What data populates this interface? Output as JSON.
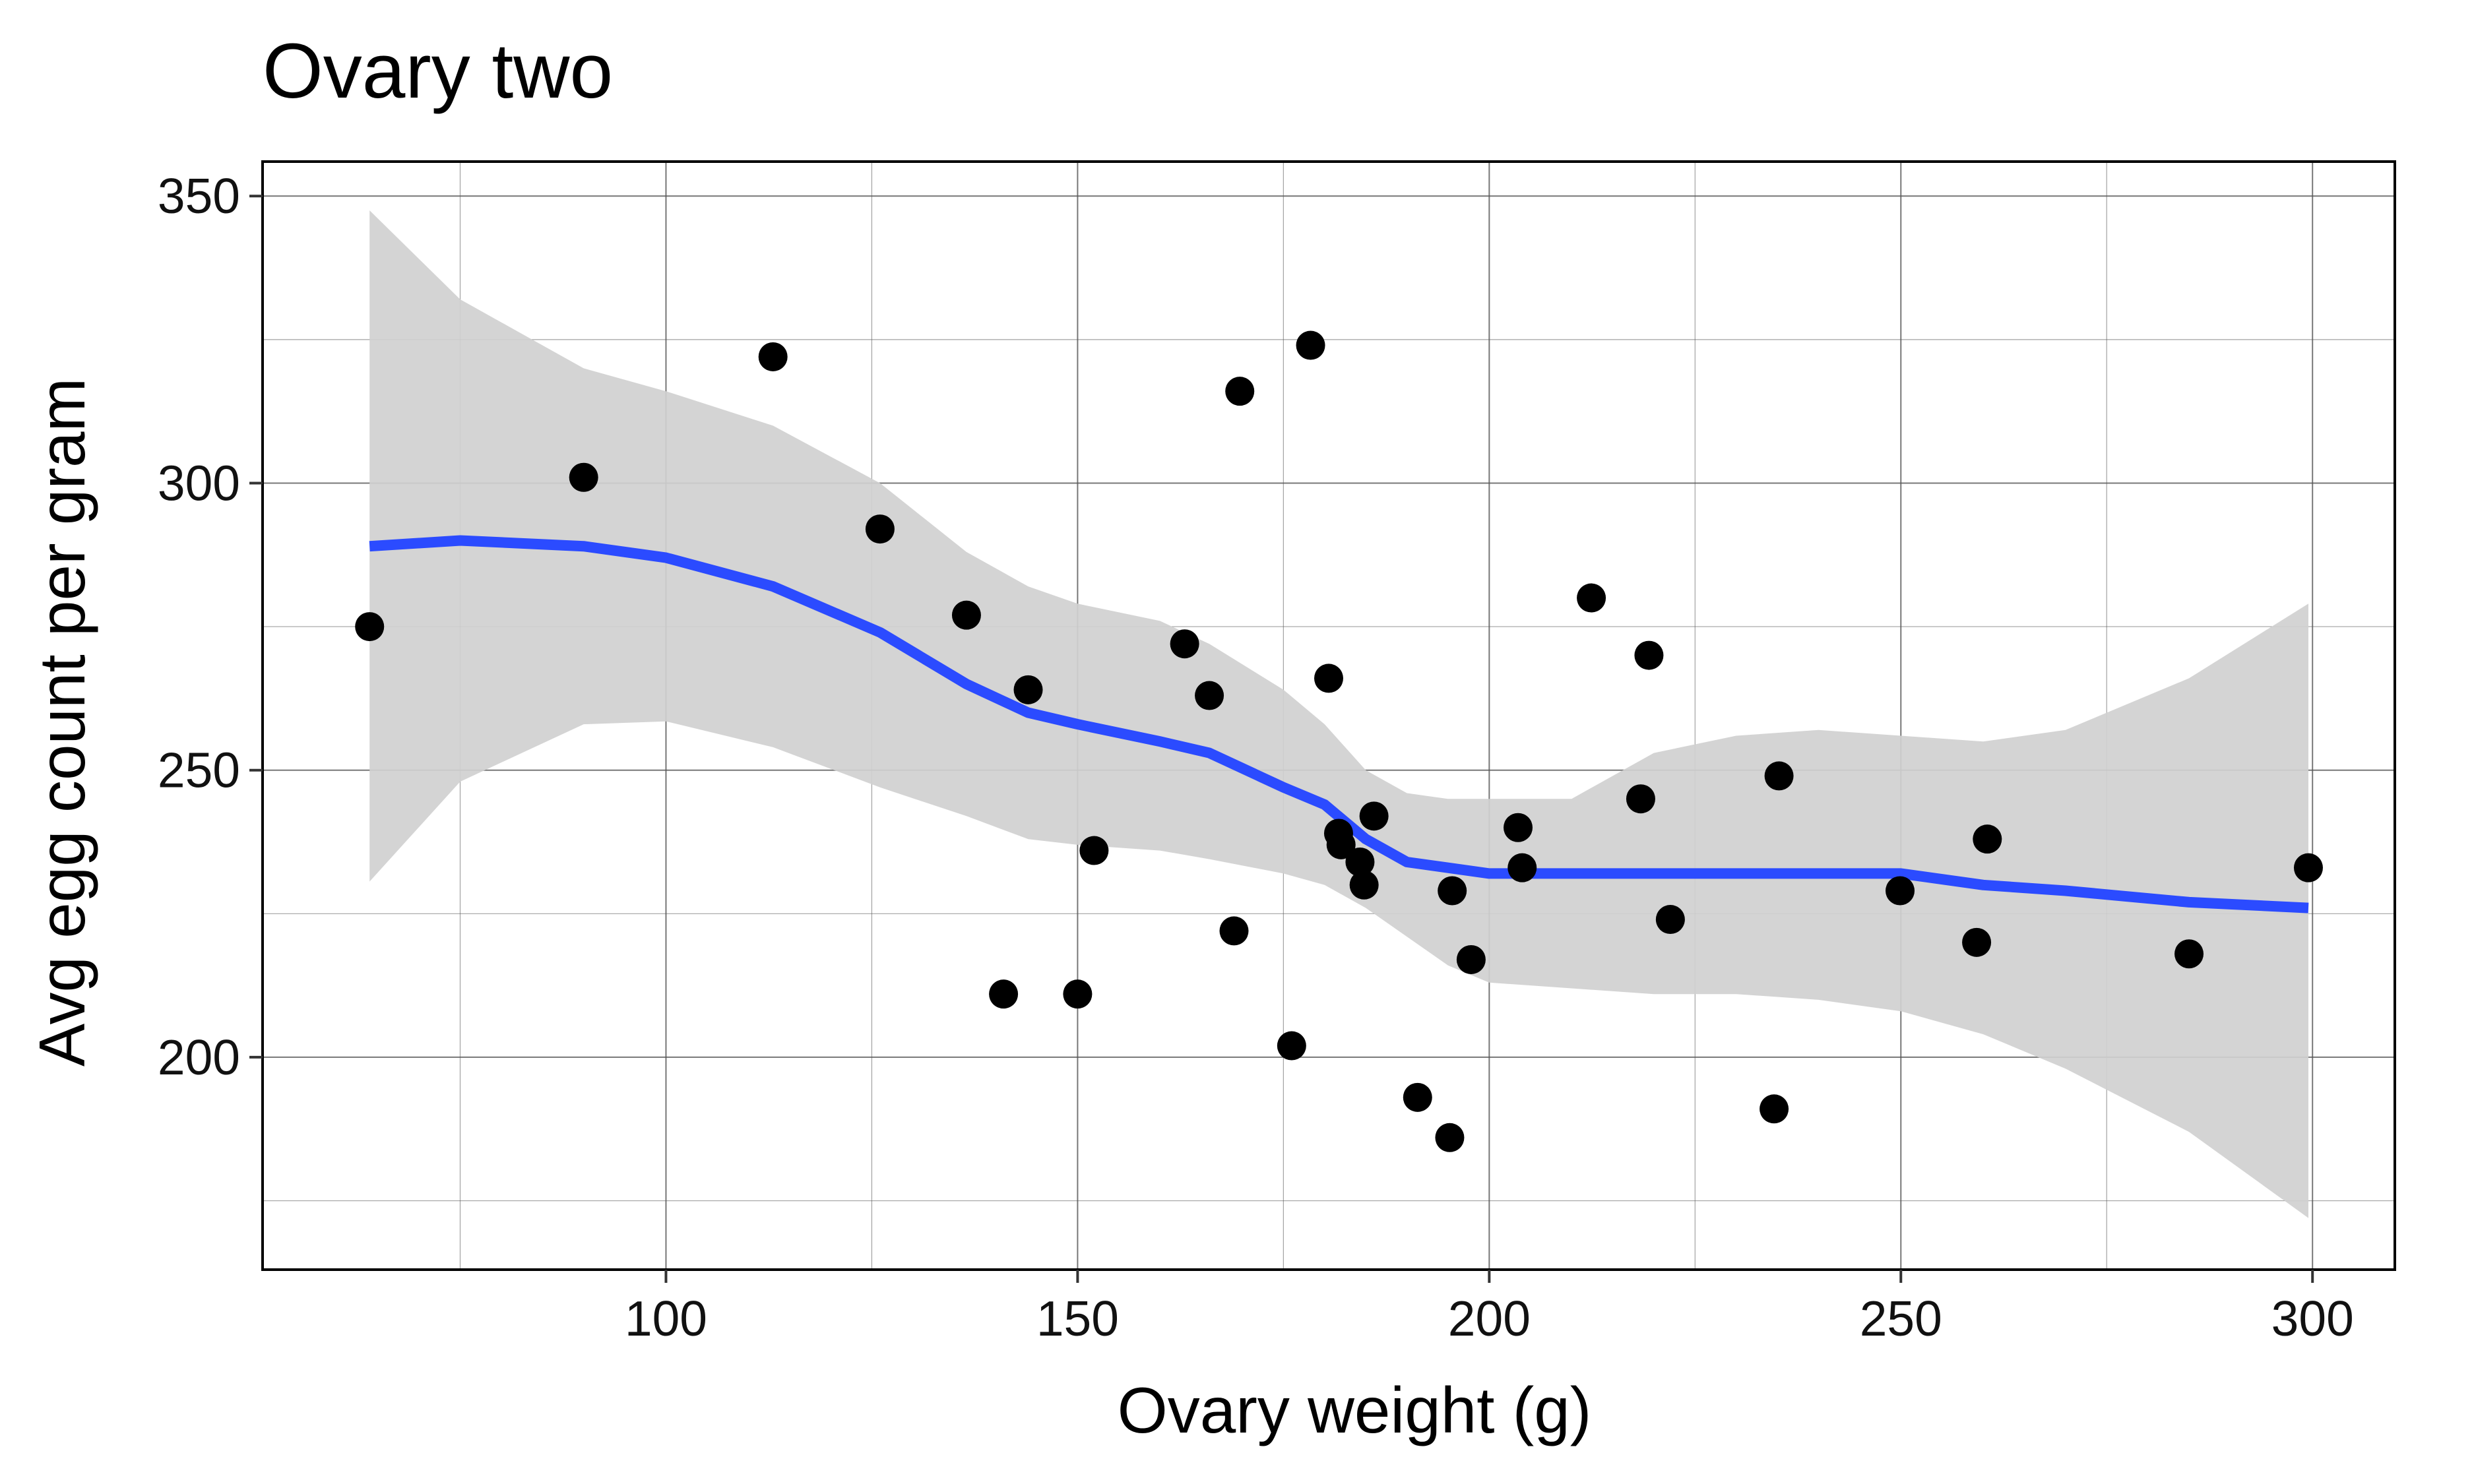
{
  "chart_data": {
    "type": "scatter",
    "title": "Ovary two",
    "xlabel": "Ovary weight (g)",
    "ylabel": "Avg egg count per gram",
    "xlim": [
      51,
      310
    ],
    "ylim": [
      163,
      356
    ],
    "x_ticks": [
      100,
      150,
      200,
      250,
      300
    ],
    "y_ticks": [
      200,
      250,
      300,
      350
    ],
    "x_minor_grid": [
      75,
      125,
      175,
      225,
      275
    ],
    "y_minor_grid": [
      175,
      225,
      275,
      325
    ],
    "grid": true,
    "legend": "none",
    "colors": {
      "points": "#000000",
      "smooth_line": "#2b4bff",
      "confidence_band": "#d0d0d0",
      "grid": "#555555",
      "frame": "#000000"
    },
    "points": [
      {
        "x": 64,
        "y": 275
      },
      {
        "x": 90,
        "y": 301
      },
      {
        "x": 113,
        "y": 322
      },
      {
        "x": 126,
        "y": 292
      },
      {
        "x": 136.5,
        "y": 277
      },
      {
        "x": 141,
        "y": 211
      },
      {
        "x": 144,
        "y": 264
      },
      {
        "x": 150,
        "y": 211
      },
      {
        "x": 152,
        "y": 236
      },
      {
        "x": 163,
        "y": 272
      },
      {
        "x": 166,
        "y": 263
      },
      {
        "x": 169,
        "y": 222
      },
      {
        "x": 169.7,
        "y": 316
      },
      {
        "x": 176,
        "y": 202
      },
      {
        "x": 178.3,
        "y": 324
      },
      {
        "x": 180.5,
        "y": 266
      },
      {
        "x": 181.7,
        "y": 239
      },
      {
        "x": 182,
        "y": 237
      },
      {
        "x": 184.3,
        "y": 234
      },
      {
        "x": 184.8,
        "y": 230
      },
      {
        "x": 186,
        "y": 242
      },
      {
        "x": 191.3,
        "y": 193
      },
      {
        "x": 195.2,
        "y": 186
      },
      {
        "x": 195.5,
        "y": 229
      },
      {
        "x": 197.8,
        "y": 217
      },
      {
        "x": 203.5,
        "y": 240
      },
      {
        "x": 204,
        "y": 233
      },
      {
        "x": 212.4,
        "y": 280
      },
      {
        "x": 218.4,
        "y": 245
      },
      {
        "x": 219.4,
        "y": 270
      },
      {
        "x": 222,
        "y": 224
      },
      {
        "x": 234.6,
        "y": 191
      },
      {
        "x": 235.2,
        "y": 249
      },
      {
        "x": 249.9,
        "y": 229
      },
      {
        "x": 259.2,
        "y": 220
      },
      {
        "x": 260.5,
        "y": 238
      },
      {
        "x": 285,
        "y": 218
      },
      {
        "x": 299.5,
        "y": 233
      }
    ],
    "smooth": {
      "x": [
        64,
        75,
        90,
        100,
        113,
        126,
        136.5,
        144,
        150,
        160,
        166,
        175,
        180,
        185,
        190,
        195,
        200,
        210,
        220,
        230,
        240,
        250,
        260,
        270,
        285,
        299.5
      ],
      "y": [
        289,
        290,
        289,
        287,
        282,
        274,
        265,
        260,
        258,
        255,
        253,
        247,
        244,
        238,
        234,
        233,
        232,
        232,
        232,
        232,
        232,
        232,
        230,
        229,
        227,
        226
      ],
      "lower": [
        230.6,
        248,
        258,
        258.5,
        254,
        247,
        242,
        238,
        237,
        236,
        234.5,
        232,
        230,
        226,
        221,
        216,
        213,
        212,
        211,
        211,
        210,
        208,
        204,
        198,
        187,
        172
      ],
      "upper": [
        347.5,
        332,
        320,
        316,
        310,
        300,
        288,
        282,
        279,
        276,
        272,
        264,
        258,
        250,
        246,
        245,
        245,
        245,
        253,
        256,
        257,
        256,
        255,
        257,
        266,
        279
      ]
    }
  }
}
